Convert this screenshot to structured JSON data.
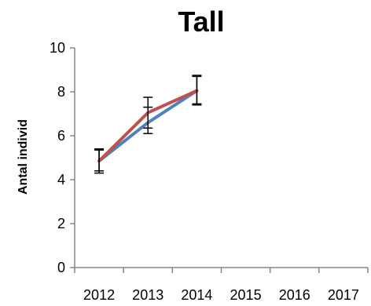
{
  "chart_data": {
    "type": "line",
    "title": "Tall",
    "xlabel": "",
    "ylabel": "Antal individ",
    "categories": [
      "2012",
      "2013",
      "2014",
      "2015",
      "2016",
      "2017"
    ],
    "ylim": [
      0,
      10
    ],
    "yticks": [
      0,
      2,
      4,
      6,
      8,
      10
    ],
    "grid": false,
    "legend": "none",
    "series": [
      {
        "color": "#4F81BD",
        "values": [
          4.85,
          6.6,
          8.05,
          null,
          null,
          null
        ],
        "error_low": [
          4.3,
          6.1,
          7.4,
          null,
          null,
          null
        ],
        "error_high": [
          5.4,
          7.3,
          8.7,
          null,
          null,
          null
        ]
      },
      {
        "color": "#C0504D",
        "values": [
          4.85,
          7.05,
          8.05,
          null,
          null,
          null
        ],
        "error_low": [
          4.4,
          6.35,
          7.45,
          null,
          null,
          null
        ],
        "error_high": [
          5.35,
          7.75,
          8.75,
          null,
          null,
          null
        ]
      }
    ]
  }
}
